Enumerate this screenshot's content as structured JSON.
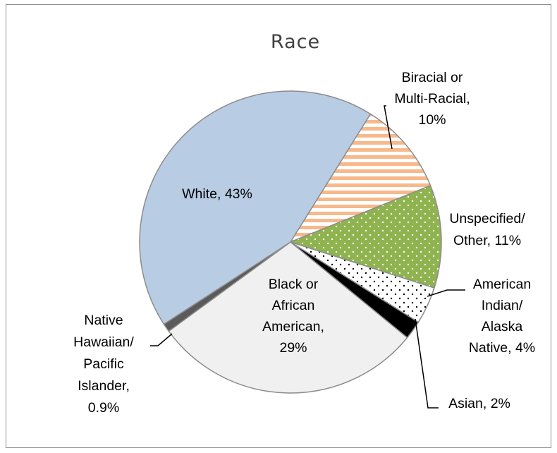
{
  "chart_data": {
    "type": "pie",
    "title": "Race",
    "slices": [
      {
        "name": "Biracial or Multi-Racial",
        "value": 10,
        "display": "10%",
        "color": "#f7b98b",
        "pattern": "horizontal-stripes"
      },
      {
        "name": "Unspecified/ Other",
        "value": 11,
        "display": "11%",
        "color": "#8fb34f",
        "pattern": "dots"
      },
      {
        "name": "American Indian/ Alaska Native",
        "value": 4,
        "display": "4%",
        "color": "#ffffff",
        "pattern": "dots"
      },
      {
        "name": "Asian",
        "value": 2,
        "display": "2%",
        "color": "#000000",
        "pattern": "solid"
      },
      {
        "name": "Black or African American",
        "value": 29,
        "display": "29%",
        "color": "#f0f0f0",
        "pattern": "solid"
      },
      {
        "name": "Native Hawaiian/ Pacific Islander",
        "value": 0.9,
        "display": "0.9%",
        "color": "#5a5a5a",
        "pattern": "solid"
      },
      {
        "name": "White",
        "value": 43,
        "display": "43%",
        "color": "#b8cce4",
        "pattern": "solid"
      }
    ],
    "labels": [
      {
        "lines": [
          "Biracial or",
          "Multi-Racial,",
          "10%"
        ]
      },
      {
        "lines": [
          "Unspecified/",
          "Other, 11%"
        ]
      },
      {
        "lines": [
          "American",
          "Indian/",
          "Alaska",
          "Native, 4%"
        ]
      },
      {
        "lines": [
          "Asian, 2%"
        ]
      },
      {
        "lines": [
          "Black or",
          "African",
          "American,",
          "29%"
        ]
      },
      {
        "lines": [
          "Native",
          "Hawaiian/",
          "Pacific",
          "Islander,",
          "0.9%"
        ]
      },
      {
        "lines": [
          "White, 43%"
        ]
      }
    ],
    "legend": "none (data labels)"
  }
}
